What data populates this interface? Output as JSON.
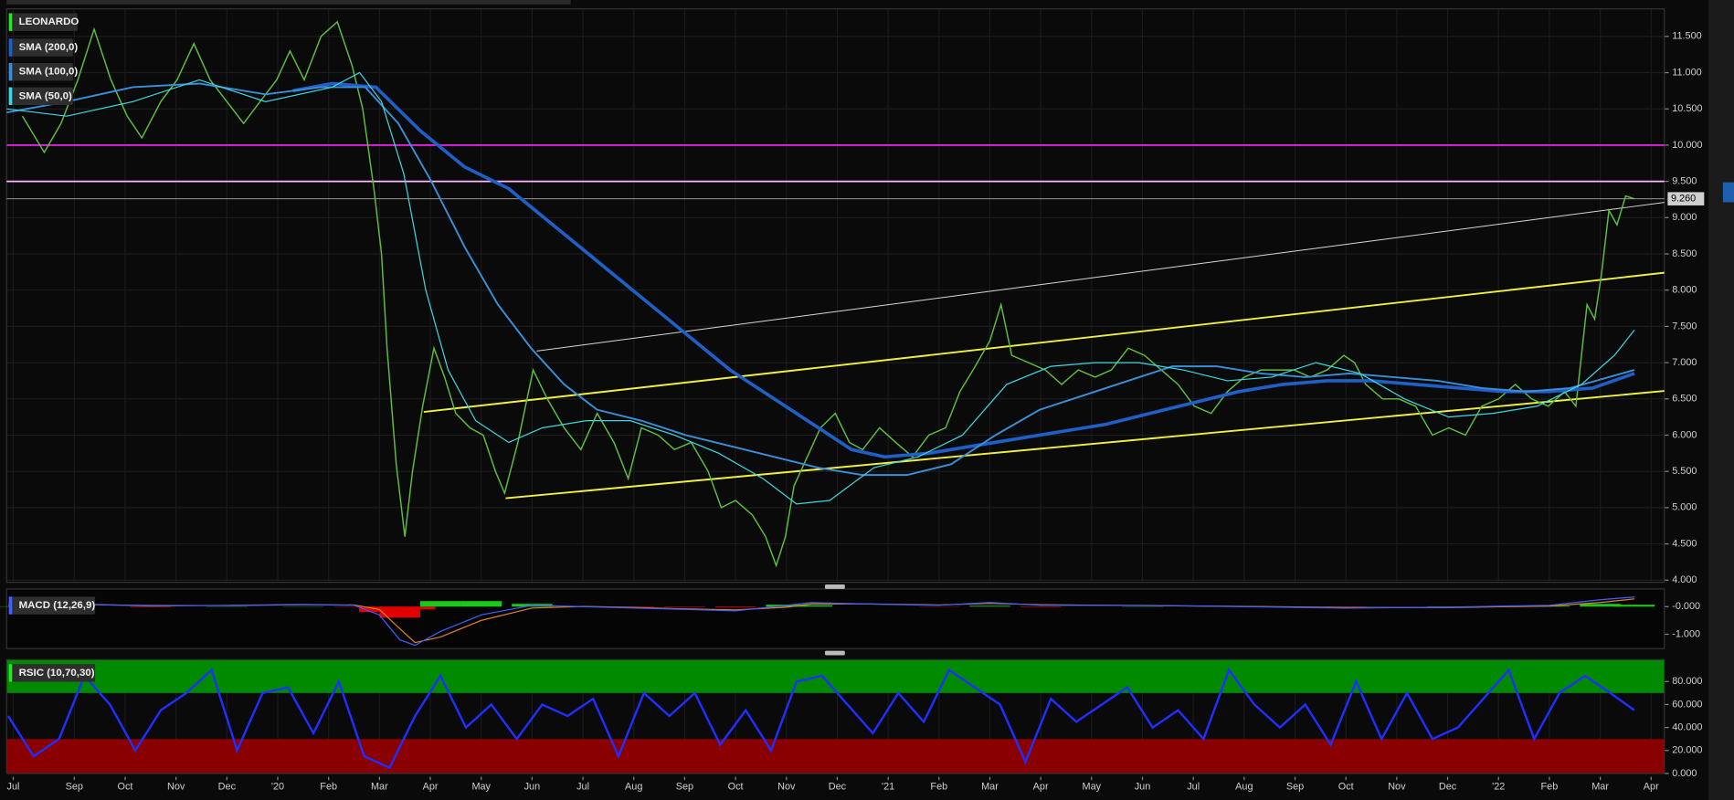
{
  "chart_data": [
    {
      "type": "price",
      "title": "LEONARDO",
      "color": "#5fbf3f",
      "x": [
        0.98,
        1.41,
        1.74,
        2.07,
        2.39,
        2.72,
        3.04,
        3.33,
        3.7,
        4.02,
        4.35,
        4.67,
        5.0,
        5.33,
        5.65,
        5.98,
        6.24,
        6.52,
        6.85,
        7.17,
        7.46,
        7.67,
        7.89,
        8.04,
        8.15,
        8.33,
        8.5,
        8.65,
        8.85,
        9.07,
        9.28,
        9.5,
        9.78,
        10.04,
        10.28,
        10.46,
        10.72,
        11.02,
        11.3,
        11.63,
        11.96,
        12.28,
        12.61,
        12.89,
        13.15,
        13.48,
        13.8,
        14.13,
        14.46,
        14.72,
        15.0,
        15.33,
        15.59,
        15.8,
        15.98,
        16.15,
        16.41,
        16.67,
        16.96,
        17.24,
        17.5,
        17.83,
        18.15,
        18.48,
        18.8,
        19.13,
        19.41,
        19.67,
        20.0,
        20.22,
        20.43,
        20.76,
        21.09,
        21.41,
        21.74,
        22.07,
        22.39,
        22.72,
        23.04,
        23.37,
        23.7,
        24.02,
        24.35,
        24.67,
        25.0,
        25.33,
        25.65,
        25.98,
        26.3,
        26.63,
        26.96,
        27.17,
        27.39,
        27.72,
        28.04,
        28.37,
        28.7,
        29.02,
        29.35,
        29.67,
        30.0,
        30.33,
        30.65,
        30.98,
        31.3,
        31.52,
        31.74,
        31.89,
        32.02,
        32.17,
        32.33,
        32.5,
        32.67
      ],
      "values": [
        10.4,
        9.9,
        10.3,
        10.9,
        11.6,
        10.9,
        10.4,
        10.1,
        10.6,
        10.9,
        11.4,
        10.9,
        10.6,
        10.3,
        10.6,
        10.9,
        11.3,
        10.9,
        11.5,
        11.7,
        11.1,
        10.5,
        9.4,
        8.5,
        7.2,
        5.6,
        4.6,
        5.5,
        6.4,
        7.2,
        6.8,
        6.3,
        6.1,
        6.0,
        5.5,
        5.2,
        5.9,
        6.9,
        6.5,
        6.1,
        5.8,
        6.3,
        5.9,
        5.4,
        6.1,
        6.0,
        5.8,
        5.9,
        5.5,
        5.0,
        5.1,
        4.9,
        4.6,
        4.2,
        4.6,
        5.3,
        5.7,
        6.1,
        6.3,
        5.9,
        5.8,
        6.1,
        5.9,
        5.7,
        6.0,
        6.1,
        6.6,
        6.9,
        7.3,
        7.8,
        7.1,
        7.0,
        6.9,
        6.7,
        6.9,
        6.8,
        6.9,
        7.2,
        7.1,
        6.9,
        6.7,
        6.4,
        6.3,
        6.6,
        6.8,
        6.9,
        6.9,
        6.9,
        6.8,
        6.9,
        7.1,
        7.0,
        6.7,
        6.5,
        6.5,
        6.4,
        6.0,
        6.1,
        6.0,
        6.4,
        6.5,
        6.7,
        6.5,
        6.4,
        6.6,
        6.4,
        7.8,
        7.6,
        8.2,
        9.1,
        8.9,
        9.3,
        9.26
      ],
      "series": [
        {
          "name": "SMA (200,0)",
          "color": "#1f5fc8",
          "width": 3,
          "x": [
            6.3,
            7.07,
            7.93,
            8.8,
            9.67,
            10.54,
            11.41,
            12.28,
            13.15,
            14.02,
            14.89,
            15.76,
            16.63,
            17.28,
            17.93,
            18.8,
            19.67,
            20.54,
            21.41,
            22.28,
            23.15,
            24.02,
            24.89,
            25.76,
            26.63,
            27.5,
            28.37,
            29.24,
            30.11,
            30.98,
            31.85,
            32.67
          ],
          "values": [
            10.75,
            10.85,
            10.8,
            10.2,
            9.7,
            9.4,
            8.9,
            8.4,
            7.9,
            7.4,
            6.9,
            6.5,
            6.1,
            5.8,
            5.7,
            5.75,
            5.85,
            5.95,
            6.05,
            6.15,
            6.3,
            6.45,
            6.6,
            6.7,
            6.75,
            6.75,
            6.7,
            6.65,
            6.6,
            6.6,
            6.65,
            6.85
          ]
        },
        {
          "name": "SMA (100,0)",
          "color": "#3a8fd8",
          "width": 1.6,
          "x": [
            0.67,
            1.85,
            3.15,
            4.46,
            5.76,
            6.85,
            7.72,
            8.37,
            9.02,
            9.67,
            10.33,
            10.98,
            11.63,
            12.28,
            13.15,
            14.02,
            14.89,
            15.76,
            16.63,
            17.5,
            18.37,
            19.24,
            20.11,
            20.98,
            21.85,
            22.72,
            23.59,
            24.46,
            25.33,
            26.2,
            27.07,
            27.93,
            28.8,
            29.67,
            30.54,
            31.41,
            32.67
          ],
          "values": [
            10.45,
            10.6,
            10.8,
            10.85,
            10.7,
            10.8,
            10.8,
            10.3,
            9.5,
            8.6,
            7.8,
            7.2,
            6.7,
            6.35,
            6.2,
            6.0,
            5.85,
            5.7,
            5.55,
            5.45,
            5.45,
            5.6,
            6.0,
            6.35,
            6.55,
            6.75,
            6.95,
            6.95,
            6.85,
            6.8,
            6.85,
            6.8,
            6.75,
            6.65,
            6.6,
            6.65,
            6.9
          ]
        },
        {
          "name": "SMA (50,0)",
          "color": "#40d8e0",
          "width": 1,
          "x": [
            0.67,
            1.85,
            3.15,
            4.46,
            5.76,
            7.07,
            7.61,
            8.04,
            8.48,
            8.91,
            9.35,
            9.89,
            10.54,
            11.2,
            12.07,
            12.93,
            13.8,
            14.67,
            15.54,
            16.2,
            16.85,
            17.72,
            18.59,
            19.46,
            20.33,
            21.2,
            22.07,
            22.93,
            23.8,
            24.67,
            25.54,
            26.41,
            27.28,
            28.15,
            29.02,
            29.89,
            30.76,
            31.63,
            32.28,
            32.67
          ],
          "values": [
            10.5,
            10.4,
            10.6,
            10.9,
            10.6,
            10.8,
            11.0,
            10.6,
            9.6,
            8.0,
            6.9,
            6.2,
            5.9,
            6.1,
            6.2,
            6.2,
            6.0,
            5.75,
            5.4,
            5.05,
            5.1,
            5.55,
            5.7,
            6.0,
            6.7,
            6.95,
            7.0,
            7.0,
            6.9,
            6.75,
            6.8,
            7.0,
            6.85,
            6.5,
            6.25,
            6.3,
            6.4,
            6.7,
            7.1,
            7.45
          ]
        }
      ],
      "lines": [
        {
          "color": "#f0f040",
          "x": [
            8.87,
            33.26
          ],
          "y": [
            6.32,
            8.24
          ]
        },
        {
          "color": "#f0f040",
          "x": [
            10.48,
            33.26
          ],
          "y": [
            5.13,
            6.61
          ]
        },
        {
          "color": "#d8d8d8",
          "x": [
            11.09,
            33.26
          ],
          "y": [
            7.16,
            9.21
          ]
        }
      ],
      "hlines": [
        {
          "value": 10.0,
          "color": "#e020e0"
        },
        {
          "value": 9.5,
          "color": "#ffb8ff"
        }
      ],
      "last_price": {
        "value": 9.26,
        "label": "9.260"
      },
      "xlim": [
        0.67,
        33.26
      ],
      "ylim": [
        3.97,
        11.88
      ],
      "yticks": [
        {
          "value": 4,
          "label": "4.000"
        },
        {
          "value": 4.5,
          "label": "4.500"
        },
        {
          "value": 5,
          "label": "5.000"
        },
        {
          "value": 5.5,
          "label": "5.500"
        },
        {
          "value": 6,
          "label": "6.000"
        },
        {
          "value": 6.5,
          "label": "6.500"
        },
        {
          "value": 7,
          "label": "7.000"
        },
        {
          "value": 7.5,
          "label": "7.500"
        },
        {
          "value": 8,
          "label": "8.000"
        },
        {
          "value": 8.5,
          "label": "8.500"
        },
        {
          "value": 9,
          "label": "9.000"
        },
        {
          "value": 9.5,
          "label": "9.500"
        },
        {
          "value": 10,
          "label": "10.000"
        },
        {
          "value": 10.5,
          "label": "10.500"
        },
        {
          "value": 11,
          "label": "11.000"
        },
        {
          "value": 11.5,
          "label": "11.500"
        }
      ],
      "xticks": [
        {
          "value": 0.8,
          "label": "Jul"
        },
        {
          "value": 2,
          "label": "Sep"
        },
        {
          "value": 3,
          "label": "Oct"
        },
        {
          "value": 4,
          "label": "Nov"
        },
        {
          "value": 5,
          "label": "Dec"
        },
        {
          "value": 6,
          "label": "'20"
        },
        {
          "value": 7,
          "label": "Feb"
        },
        {
          "value": 8,
          "label": "Mar"
        },
        {
          "value": 9,
          "label": "Apr"
        },
        {
          "value": 10,
          "label": "May"
        },
        {
          "value": 11,
          "label": "Jun"
        },
        {
          "value": 12,
          "label": "Jul"
        },
        {
          "value": 13,
          "label": "Aug"
        },
        {
          "value": 14,
          "label": "Sep"
        },
        {
          "value": 15,
          "label": "Oct"
        },
        {
          "value": 16,
          "label": "Nov"
        },
        {
          "value": 17,
          "label": "Dec"
        },
        {
          "value": 18,
          "label": "'21"
        },
        {
          "value": 19,
          "label": "Feb"
        },
        {
          "value": 20,
          "label": "Mar"
        },
        {
          "value": 21,
          "label": "Apr"
        },
        {
          "value": 22,
          "label": "May"
        },
        {
          "value": 23,
          "label": "Jun"
        },
        {
          "value": 24,
          "label": "Jul"
        },
        {
          "value": 25,
          "label": "Aug"
        },
        {
          "value": 26,
          "label": "Sep"
        },
        {
          "value": 27,
          "label": "Oct"
        },
        {
          "value": 28,
          "label": "Nov"
        },
        {
          "value": 29,
          "label": "Dec"
        },
        {
          "value": 30,
          "label": "'22"
        },
        {
          "value": 31,
          "label": "Feb"
        },
        {
          "value": 32,
          "label": "Mar"
        },
        {
          "value": 33,
          "label": "Apr"
        }
      ],
      "grid": true
    },
    {
      "type": "macd",
      "title": "MACD (12,26,9)",
      "x": [
        0.7,
        2,
        3.5,
        5,
        6.5,
        7.5,
        8.0,
        8.4,
        8.7,
        9.2,
        10,
        11,
        12,
        13,
        14,
        15,
        16,
        16.5,
        17.5,
        19,
        20,
        21,
        23,
        25,
        27,
        29,
        31,
        32,
        32.67
      ],
      "macd": {
        "color": "#4060ff",
        "values": [
          0.05,
          0.1,
          0.02,
          0.05,
          0.08,
          0.05,
          -0.3,
          -1.2,
          -1.4,
          -0.9,
          -0.3,
          0.05,
          0,
          -0.05,
          -0.1,
          -0.15,
          0.05,
          0.15,
          0.1,
          0.05,
          0.15,
          0.05,
          0.05,
          0,
          -0.05,
          -0.02,
          0.05,
          0.25,
          0.35
        ]
      },
      "signal": {
        "color": "#e08030",
        "values": [
          0.04,
          0.08,
          0.04,
          0.04,
          0.07,
          0.06,
          -0.1,
          -0.8,
          -1.3,
          -1.1,
          -0.5,
          -0.05,
          0.01,
          -0.03,
          -0.08,
          -0.12,
          -0.02,
          0.1,
          0.1,
          0.06,
          0.12,
          0.07,
          0.04,
          0.01,
          -0.03,
          -0.03,
          0.02,
          0.15,
          0.28
        ]
      },
      "histogram": {
        "positive_color": "#19c819",
        "negative_color": "#e00000",
        "values": [
          0.01,
          0.02,
          -0.02,
          0.01,
          0.01,
          -0.01,
          -0.2,
          -0.4,
          -0.1,
          0.2,
          0.2,
          0.1,
          -0.01,
          -0.02,
          -0.02,
          -0.03,
          0.07,
          0.05,
          0,
          -0.01,
          0.03,
          -0.02,
          0.01,
          -0.01,
          -0.02,
          0.01,
          0.03,
          0.1,
          0.07
        ]
      },
      "xlim": [
        0.67,
        33.26
      ],
      "ylim": [
        -1.52,
        0.64
      ],
      "yticks": [
        {
          "value": 0,
          "label": "-0.000"
        },
        {
          "value": -1,
          "label": "-1.000"
        }
      ]
    },
    {
      "type": "rsi",
      "title": "RSIC (10,70,30)",
      "color": "#1f2fff",
      "x": [
        0.7,
        1.2,
        1.7,
        2.2,
        2.7,
        3.2,
        3.7,
        4.2,
        4.7,
        5.2,
        5.7,
        6.2,
        6.7,
        7.2,
        7.7,
        8.2,
        8.7,
        9.2,
        9.7,
        10.2,
        10.7,
        11.2,
        11.7,
        12.2,
        12.7,
        13.2,
        13.7,
        14.2,
        14.7,
        15.2,
        15.7,
        16.2,
        16.7,
        17.2,
        17.7,
        18.2,
        18.7,
        19.2,
        19.7,
        20.2,
        20.7,
        21.2,
        21.7,
        22.2,
        22.7,
        23.2,
        23.7,
        24.2,
        24.7,
        25.2,
        25.7,
        26.2,
        26.7,
        27.2,
        27.7,
        28.2,
        28.7,
        29.2,
        29.7,
        30.2,
        30.7,
        31.2,
        31.7,
        32.2,
        32.67
      ],
      "values": [
        50,
        15,
        30,
        85,
        60,
        20,
        55,
        70,
        90,
        20,
        70,
        75,
        35,
        80,
        15,
        5,
        50,
        85,
        40,
        60,
        30,
        60,
        50,
        65,
        15,
        70,
        50,
        70,
        25,
        55,
        20,
        80,
        85,
        60,
        35,
        70,
        45,
        90,
        75,
        60,
        10,
        65,
        45,
        60,
        75,
        40,
        55,
        30,
        90,
        60,
        40,
        60,
        25,
        80,
        30,
        70,
        30,
        40,
        65,
        90,
        30,
        70,
        85,
        70,
        55
      ],
      "bands": [
        {
          "range": [
            70,
            99
          ],
          "color": "#008a00"
        },
        {
          "range": [
            0,
            30
          ],
          "color": "#8a0000"
        }
      ],
      "xlim": [
        0.67,
        33.26
      ],
      "ylim": [
        0,
        99
      ],
      "yticks": [
        {
          "value": 0,
          "label": "0.000"
        },
        {
          "value": 20,
          "label": "20.000"
        },
        {
          "value": 40,
          "label": "40.000"
        },
        {
          "value": 60,
          "label": "60.000"
        },
        {
          "value": 80,
          "label": "80.000"
        }
      ]
    }
  ]
}
